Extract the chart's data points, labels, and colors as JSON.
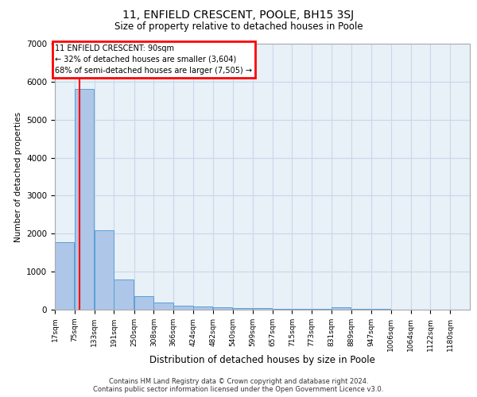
{
  "title_line1": "11, ENFIELD CRESCENT, POOLE, BH15 3SJ",
  "title_line2": "Size of property relative to detached houses in Poole",
  "xlabel": "Distribution of detached houses by size in Poole",
  "ylabel": "Number of detached properties",
  "footer_line1": "Contains HM Land Registry data © Crown copyright and database right 2024.",
  "footer_line2": "Contains public sector information licensed under the Open Government Licence v3.0.",
  "bin_labels": [
    "17sqm",
    "75sqm",
    "133sqm",
    "191sqm",
    "250sqm",
    "308sqm",
    "366sqm",
    "424sqm",
    "482sqm",
    "540sqm",
    "599sqm",
    "657sqm",
    "715sqm",
    "773sqm",
    "831sqm",
    "889sqm",
    "947sqm",
    "1006sqm",
    "1064sqm",
    "1122sqm",
    "1180sqm"
  ],
  "bar_values": [
    1780,
    5800,
    2080,
    800,
    350,
    195,
    100,
    75,
    65,
    50,
    40,
    30,
    25,
    20,
    70,
    15,
    12,
    10,
    8,
    6,
    0
  ],
  "bar_color": "#aec6e8",
  "bar_edge_color": "#5a9fd4",
  "grid_color": "#c8d8e8",
  "background_color": "#e8f0f8",
  "property_line_x": 90,
  "bin_edges": [
    17,
    75,
    133,
    191,
    250,
    308,
    366,
    424,
    482,
    540,
    599,
    657,
    715,
    773,
    831,
    889,
    947,
    1006,
    1064,
    1122,
    1180
  ],
  "annotation_text": "11 ENFIELD CRESCENT: 90sqm\n← 32% of detached houses are smaller (3,604)\n68% of semi-detached houses are larger (7,505) →",
  "annotation_box_color": "#cc0000",
  "ylim": [
    0,
    7000
  ],
  "yticks": [
    0,
    1000,
    2000,
    3000,
    4000,
    5000,
    6000,
    7000
  ]
}
